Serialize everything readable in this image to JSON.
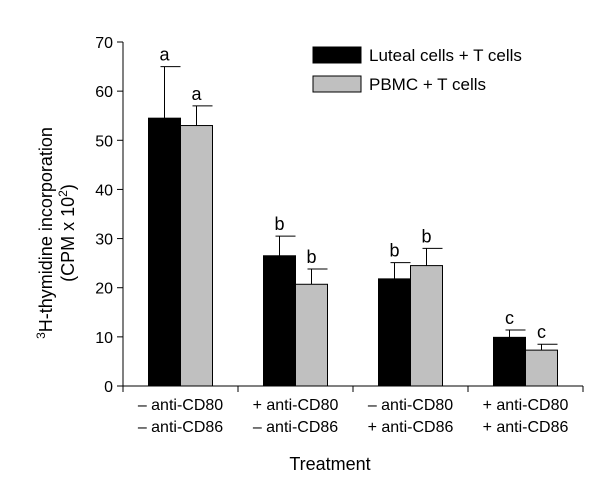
{
  "chart_data": {
    "type": "bar",
    "xlabel": "Treatment",
    "ylabel_prefix": "3",
    "ylabel_main": "H-thymidine incorporation",
    "ylabel_unit_prefix": "(CPM x 10",
    "ylabel_unit_exp": "2",
    "ylabel_unit_suffix": ")",
    "ylim": [
      0,
      70
    ],
    "yticks": [
      0,
      10,
      20,
      30,
      40,
      50,
      60,
      70
    ],
    "categories": [
      {
        "line1": "– anti-CD80",
        "line2": "– anti-CD86"
      },
      {
        "line1": "+ anti-CD80",
        "line2": "– anti-CD86"
      },
      {
        "line1": "– anti-CD80",
        "line2": "+ anti-CD86"
      },
      {
        "line1": "+ anti-CD80",
        "line2": "+ anti-CD86"
      }
    ],
    "series": [
      {
        "name": "Luteal cells + T cells",
        "color": "#000000",
        "values": [
          54.5,
          26.5,
          21.8,
          9.9
        ],
        "errors": [
          10.5,
          4.0,
          3.3,
          1.5
        ],
        "labels": [
          "a",
          "b",
          "b",
          "c"
        ]
      },
      {
        "name": "PBMC + T cells",
        "color": "#c0c0c0",
        "values": [
          53.0,
          20.7,
          24.5,
          7.3
        ],
        "errors": [
          4.0,
          3.1,
          3.5,
          1.2
        ],
        "labels": [
          "a",
          "b",
          "b",
          "c"
        ]
      }
    ],
    "legend_position": "top-right",
    "grid": false
  }
}
